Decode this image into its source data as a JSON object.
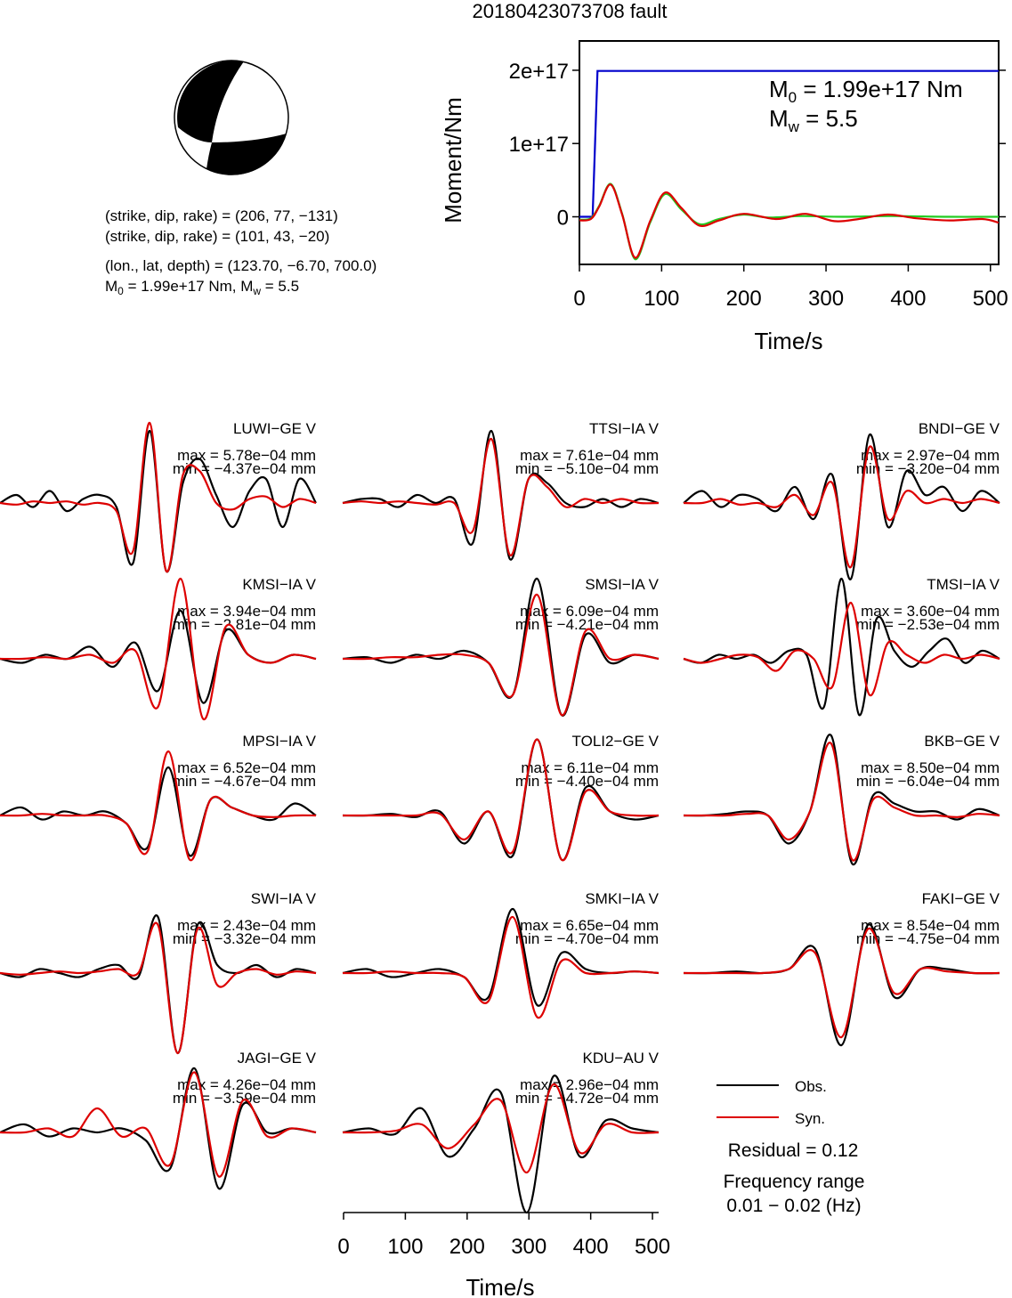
{
  "title": "20180423073708 fault",
  "focal_mechanism": {
    "plane1": "(strike, dip, rake) = (206, 77, −131)",
    "plane2": "(strike, dip, rake) = (101, 43, −20)",
    "location": "(lon., lat, depth) = (123.70, −6.70, 700.0)",
    "moment_line": "M0 = 1.99e+17 Nm, Mw = 5.5",
    "ball_color": "#000000"
  },
  "stf_chart": {
    "m0_text": "M0 = 1.99e+17 Nm",
    "mw_text": "Mw = 5.5",
    "ylabel": "Moment/Nm",
    "xlabel": "Time/s",
    "xticks": [
      "0",
      "100",
      "200",
      "300",
      "400",
      "500"
    ],
    "yticks": [
      "2e+17",
      "1e+17",
      "0"
    ]
  },
  "chart_data": [
    {
      "type": "line",
      "xlabel": "Time/s",
      "ylabel": "Moment/Nm",
      "xlim": [
        0,
        510
      ],
      "ylim": [
        -6.5e+16,
        2.4e+17
      ],
      "series": [
        {
          "color": "#0000cc",
          "x": [
            0,
            16,
            22,
            510
          ],
          "y": [
            0,
            0,
            1.99e+17,
            1.99e+17
          ]
        },
        {
          "color": "#22cc22",
          "x": [
            0,
            14,
            24,
            38,
            52,
            68,
            86,
            104,
            124,
            146,
            170,
            200,
            230,
            270,
            320,
            380,
            450,
            510
          ],
          "y": [
            -4000000000000000.0,
            -2000000000000000.0,
            1.5e+16,
            4.5e+16,
            4000000000000000.0,
            -5.8e+16,
            -8000000000000000.0,
            3.1e+16,
            1e+16,
            -1e+16,
            -3000000000000000.0,
            3000000000000000.0,
            -1000000000000000.0,
            1000000000000000.0,
            0,
            1000000000000000.0,
            0,
            0
          ]
        },
        {
          "color": "#dd0000",
          "x": [
            0,
            14,
            24,
            38,
            52,
            68,
            86,
            104,
            124,
            146,
            170,
            200,
            240,
            275,
            310,
            340,
            375,
            410,
            450,
            490,
            510
          ],
          "y": [
            -5000000000000000.0,
            -3000000000000000.0,
            1.4e+16,
            4.4e+16,
            3000000000000000.0,
            -5.6e+16,
            -6000000000000000.0,
            3.3e+16,
            1.2e+16,
            -1.2e+16,
            -5000000000000000.0,
            4000000000000000.0,
            -3000000000000000.0,
            4000000000000000.0,
            -6000000000000000.0,
            -3000000000000000.0,
            3000000000000000.0,
            -2000000000000000.0,
            -5000000000000000.0,
            -3000000000000000.0,
            -8000000000000000.0
          ]
        }
      ]
    },
    {
      "type": "line",
      "xlabel": "Time/s",
      "xlim": [
        0,
        510
      ],
      "xticks": [
        "0",
        "100",
        "200",
        "300",
        "400",
        "500"
      ],
      "legend": {
        "placement": "bottom-right",
        "entries": [
          {
            "label": "Obs.",
            "color": "#000000"
          },
          {
            "label": "Syn.",
            "color": "#dd0000"
          }
        ]
      },
      "residual": "Residual = 0.12",
      "frequency_label": "Frequency range",
      "frequency_range": "0.01 − 0.02 (Hz)",
      "stations": [
        {
          "name": "LUWI−GE V",
          "max": "max = 5.78e−04 mm",
          "min": "min = −4.37e−04 mm",
          "t0": 200,
          "obs": [
            0,
            0.1,
            -0.05,
            0.15,
            -0.1,
            0.05,
            0.1,
            -0.05,
            -0.75,
            0.9,
            -0.85,
            0.25,
            0.55,
            0.1,
            -0.3,
            0.15,
            0.3,
            -0.3,
            0.3,
            0
          ],
          "syn": [
            0,
            -0.02,
            0.02,
            0,
            0.02,
            -0.02,
            0,
            -0.1,
            -0.6,
            1.0,
            -0.85,
            0.35,
            0.4,
            0,
            -0.08,
            0.05,
            0.08,
            -0.05,
            0.05,
            0
          ]
        },
        {
          "name": "TTSI−IA V",
          "max": "max = 7.61e−04 mm",
          "min": "min = −5.10e−04 mm",
          "t0": 200,
          "obs": [
            0,
            0.05,
            0.05,
            -0.05,
            0.1,
            0,
            0.05,
            -0.5,
            0.9,
            -0.7,
            0.3,
            0.25,
            0,
            -0.05,
            0.05,
            -0.05,
            0.05,
            0
          ],
          "syn": [
            0,
            0.02,
            0,
            0.02,
            0,
            -0.02,
            0,
            -0.35,
            0.8,
            -0.65,
            0.3,
            0.2,
            -0.05,
            0.05,
            0,
            0.05,
            0,
            0
          ]
        },
        {
          "name": "BNDI−GE V",
          "max": "max = 2.97e−04 mm",
          "min": "min = −3.20e−04 mm",
          "t0": 200,
          "obs": [
            0,
            0.15,
            -0.05,
            0.1,
            0.05,
            -0.1,
            0.2,
            -0.2,
            0.35,
            -0.95,
            0.85,
            -0.3,
            0.4,
            0.1,
            0.2,
            -0.1,
            0.15,
            0
          ],
          "syn": [
            0,
            0,
            0.05,
            -0.02,
            0,
            -0.05,
            0.1,
            -0.15,
            0.25,
            -0.8,
            0.7,
            -0.2,
            0.15,
            0,
            0.05,
            0,
            0.05,
            0
          ]
        },
        {
          "name": "KMSI−IA V",
          "max": "max = 3.94e−04 mm",
          "min": "min = −2.81e−04 mm",
          "t0": 200,
          "obs": [
            0,
            -0.05,
            0.05,
            0,
            0.15,
            -0.1,
            0.2,
            -0.4,
            0.6,
            -0.55,
            0.35,
            0.05,
            -0.05,
            0.05,
            0
          ],
          "syn": [
            0,
            0,
            0.02,
            0,
            0.05,
            -0.05,
            0.1,
            -0.6,
            1.0,
            -0.75,
            0.4,
            0.05,
            -0.05,
            0.05,
            0
          ]
        },
        {
          "name": "SMSI−IA V",
          "max": "max = 6.09e−04 mm",
          "min": "min = −4.21e−04 mm",
          "t0": 200,
          "obs": [
            0,
            0.02,
            -0.05,
            0.05,
            0,
            0.1,
            -0.05,
            -0.45,
            1.0,
            -0.7,
            0.3,
            -0.05,
            0.05,
            0
          ],
          "syn": [
            0,
            0,
            0.02,
            0.02,
            0.05,
            0.05,
            -0.05,
            -0.45,
            0.8,
            -0.7,
            0.35,
            0,
            0.05,
            0
          ]
        },
        {
          "name": "TMSI−IA V",
          "max": "max = 3.60e−04 mm",
          "min": "min = −2.53e−04 mm",
          "t0": 200,
          "obs": [
            0,
            -0.05,
            0.05,
            0,
            0.05,
            -0.05,
            0.1,
            0.05,
            -0.6,
            1.0,
            -0.7,
            0.5,
            0.1,
            -0.1,
            0.1,
            0.25,
            -0.05,
            0.1,
            0
          ],
          "syn": [
            0,
            -0.05,
            0,
            0.05,
            0.02,
            -0.15,
            0.1,
            0,
            -0.35,
            0.7,
            -0.45,
            0.2,
            0.05,
            -0.05,
            0.05,
            0,
            0.05,
            0
          ]
        },
        {
          "name": "MPSI−IA V",
          "max": "max = 6.52e−04 mm",
          "min": "min = −4.67e−04 mm",
          "t0": 200,
          "obs": [
            0,
            0.1,
            -0.05,
            0.05,
            0,
            0.05,
            -0.1,
            -0.4,
            0.6,
            -0.5,
            0.2,
            0.1,
            0,
            -0.05,
            0.15,
            0
          ],
          "syn": [
            0,
            0,
            0.02,
            0,
            0,
            0,
            -0.1,
            -0.45,
            0.8,
            -0.55,
            0.2,
            0.1,
            0,
            -0.02,
            0,
            0
          ]
        },
        {
          "name": "TOLI2−GE V",
          "max": "max = 6.11e−04 mm",
          "min": "min = −4.40e−04 mm",
          "t0": 200,
          "obs": [
            0,
            0,
            0.02,
            -0.02,
            0.05,
            -0.35,
            0.05,
            -0.5,
            0.95,
            -0.55,
            0.35,
            0.05,
            -0.05,
            0
          ],
          "syn": [
            0,
            0,
            0,
            0,
            0.02,
            -0.3,
            0.05,
            -0.45,
            0.95,
            -0.55,
            0.3,
            0.05,
            0,
            0
          ]
        },
        {
          "name": "BKB−GE V",
          "max": "max = 8.50e−04 mm",
          "min": "min = −6.04e−04 mm",
          "t0": 200,
          "obs": [
            0,
            0,
            0.02,
            0.05,
            0,
            -0.35,
            0.05,
            1.0,
            -0.6,
            0.25,
            0.15,
            0.05,
            0.05,
            -0.05,
            0.08,
            0
          ],
          "syn": [
            0,
            0,
            0,
            0.02,
            0,
            -0.3,
            0.05,
            0.9,
            -0.55,
            0.2,
            0.1,
            0,
            0,
            -0.02,
            0.02,
            0
          ]
        },
        {
          "name": "SWI−IA V",
          "max": "max = 2.43e−04 mm",
          "min": "min = −3.32e−04 mm",
          "t0": 200,
          "obs": [
            0,
            -0.05,
            0.05,
            0,
            -0.05,
            0.05,
            0.1,
            -0.05,
            0.7,
            -1.0,
            0.6,
            0.1,
            0.0,
            0.1,
            -0.05,
            0.05,
            0
          ],
          "syn": [
            0,
            -0.02,
            0,
            0.02,
            0,
            0.02,
            0.05,
            0,
            0.6,
            -1.0,
            0.55,
            -0.15,
            0.0,
            0.05,
            -0.02,
            0.02,
            0
          ]
        },
        {
          "name": "SMKI−IA V",
          "max": "max = 6.65e−04 mm",
          "min": "min = −4.70e−04 mm",
          "t0": 200,
          "obs": [
            0,
            0.05,
            -0.05,
            0,
            0.05,
            -0.05,
            -0.3,
            0.8,
            -0.4,
            0.25,
            0.05,
            0,
            0.02,
            0
          ],
          "syn": [
            0,
            0,
            0.02,
            0,
            0,
            -0.05,
            -0.35,
            0.7,
            -0.55,
            0.15,
            0,
            0,
            0.02,
            0
          ]
        },
        {
          "name": "FAKI−GE V",
          "max": "max = 8.54e−04 mm",
          "min": "min = −4.75e−04 mm",
          "t0": 200,
          "obs": [
            0,
            0,
            0.02,
            0,
            0.05,
            0.3,
            -0.9,
            0.6,
            -0.3,
            0.05,
            0.05,
            0,
            0
          ],
          "syn": [
            0,
            0,
            0,
            0,
            0.05,
            0.25,
            -0.8,
            0.55,
            -0.25,
            0.05,
            0.02,
            0,
            0
          ]
        },
        {
          "name": "JAGI−GE V",
          "max": "max = 4.26e−04 mm",
          "min": "min = −3.59e−04 mm",
          "t0": 200,
          "obs": [
            0,
            0.1,
            -0.05,
            0.05,
            0,
            0.05,
            -0.1,
            -0.45,
            0.8,
            -0.7,
            0.35,
            0,
            0.05,
            0
          ],
          "syn": [
            0,
            0,
            0.05,
            -0.05,
            0.3,
            -0.05,
            0.05,
            -0.4,
            0.75,
            -0.55,
            0.4,
            -0.05,
            0.05,
            0
          ]
        },
        {
          "name": "KDU−AU V",
          "max": "max = 2.96e−04 mm",
          "min": "min = −4.72e−04 mm",
          "t0": 200,
          "obs": [
            0,
            0.05,
            -0.02,
            0.3,
            -0.3,
            0.05,
            0.5,
            -1.0,
            0.7,
            -0.3,
            0.15,
            0.05,
            0
          ],
          "syn": [
            0,
            0,
            0.02,
            0.1,
            -0.2,
            0.1,
            0.4,
            -0.5,
            0.6,
            -0.25,
            0.1,
            0,
            0
          ]
        }
      ]
    }
  ]
}
